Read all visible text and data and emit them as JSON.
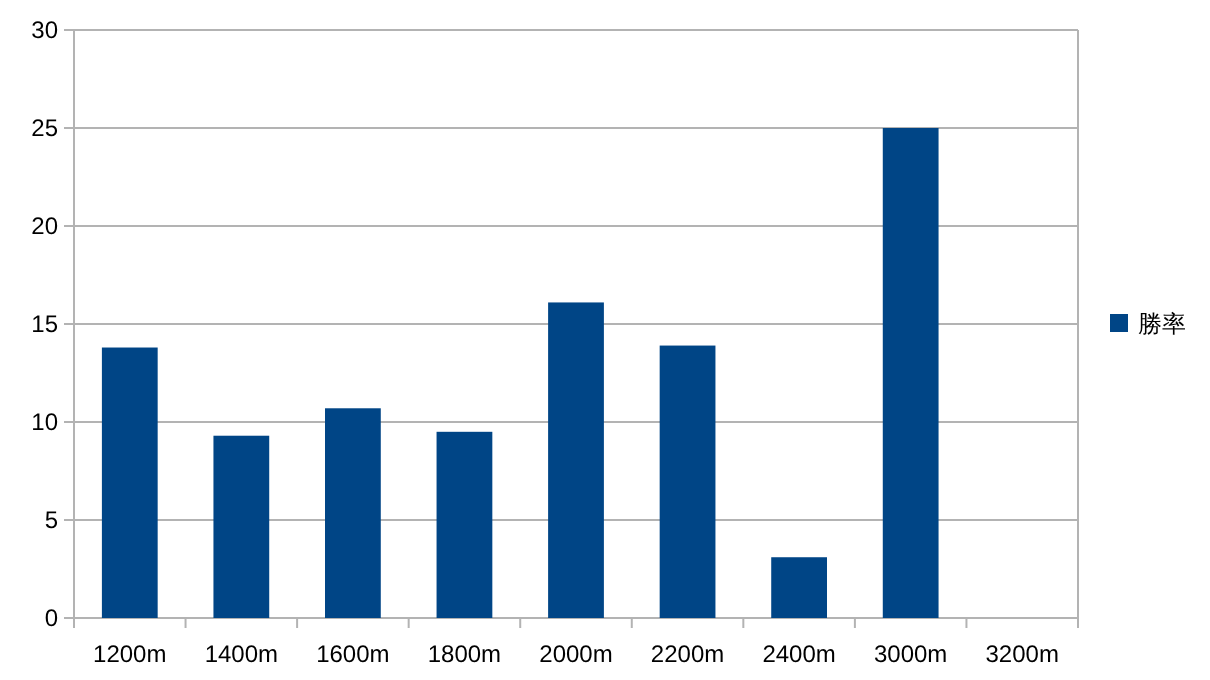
{
  "chart_data": {
    "type": "bar",
    "categories": [
      "1200m",
      "1400m",
      "1600m",
      "1800m",
      "2000m",
      "2200m",
      "2400m",
      "3000m",
      "3200m"
    ],
    "series": [
      {
        "name": "勝率",
        "color": "#004586",
        "values": [
          13.8,
          9.3,
          10.7,
          9.5,
          16.1,
          13.9,
          3.1,
          25.0,
          0
        ]
      }
    ],
    "ylim": [
      0,
      30
    ],
    "yticks": [
      0,
      5,
      10,
      15,
      20,
      25,
      30
    ],
    "grid": "y",
    "legend": "right"
  }
}
